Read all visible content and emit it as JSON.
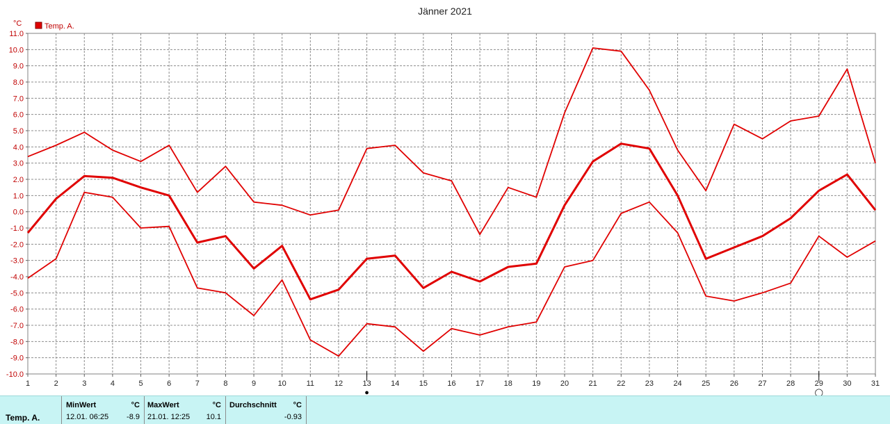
{
  "chart_data": {
    "type": "line",
    "title": "Jänner 2021",
    "ylabel": "°C",
    "ylim": [
      -10,
      11
    ],
    "ytick_labels": [
      "11.0",
      "10.0",
      "9.0",
      "8.0",
      "7.0",
      "6.0",
      "5.0",
      "4.0",
      "3.0",
      "2.0",
      "1.0",
      "0.0",
      "-1.0",
      "-2.0",
      "-3.0",
      "-4.0",
      "-5.0",
      "-6.0",
      "-7.0",
      "-8.0",
      "-9.0",
      "-10.0"
    ],
    "x": [
      1,
      2,
      3,
      4,
      5,
      6,
      7,
      8,
      9,
      10,
      11,
      12,
      13,
      14,
      15,
      16,
      17,
      18,
      19,
      20,
      21,
      22,
      23,
      24,
      25,
      26,
      27,
      28,
      29,
      30,
      31
    ],
    "grid": true,
    "legend": "top-left",
    "legend_label": "Temp. A.",
    "color": "#e00000",
    "series": [
      {
        "role": "max",
        "values": [
          3.4,
          4.1,
          4.9,
          3.8,
          3.1,
          4.1,
          1.2,
          2.8,
          0.6,
          0.4,
          -0.2,
          0.1,
          3.9,
          4.1,
          2.4,
          1.9,
          -1.4,
          1.5,
          0.9,
          6.1,
          10.1,
          9.9,
          7.5,
          3.8,
          1.3,
          5.4,
          4.5,
          5.6,
          5.9,
          8.8,
          3.0
        ]
      },
      {
        "role": "mean",
        "values": [
          -1.3,
          0.8,
          2.2,
          2.1,
          1.5,
          1.0,
          -1.9,
          -1.5,
          -3.5,
          -2.1,
          -5.4,
          -4.8,
          -2.9,
          -2.7,
          -4.7,
          -3.7,
          -4.3,
          -3.4,
          -3.2,
          0.4,
          3.1,
          4.2,
          3.9,
          1.0,
          -2.9,
          -2.2,
          -1.5,
          -0.4,
          1.3,
          2.3,
          0.1
        ]
      },
      {
        "role": "min",
        "values": [
          -4.1,
          -2.9,
          1.2,
          0.9,
          -1.0,
          -0.9,
          -4.7,
          -5.0,
          -6.4,
          -4.2,
          -7.9,
          -8.9,
          -6.9,
          -7.1,
          -8.6,
          -7.2,
          -7.6,
          -7.1,
          -6.8,
          -3.4,
          -3.0,
          -0.1,
          0.6,
          -1.3,
          -5.2,
          -5.5,
          -5.0,
          -4.4,
          -1.5,
          -2.8,
          -1.8
        ]
      }
    ],
    "markers": [
      {
        "day": 13,
        "symbol": "●"
      },
      {
        "day": 29,
        "symbol": "◯"
      }
    ]
  },
  "stats": {
    "series_name": "Temp. A.",
    "min": {
      "label": "MinWert",
      "unit": "°C",
      "when": "12.01.  06:25",
      "value": "-8.9"
    },
    "max": {
      "label": "MaxWert",
      "unit": "°C",
      "when": "21.01.  12:25",
      "value": "10.1"
    },
    "avg": {
      "label": "Durchschnitt",
      "unit": "°C",
      "value": "-0.93"
    }
  }
}
